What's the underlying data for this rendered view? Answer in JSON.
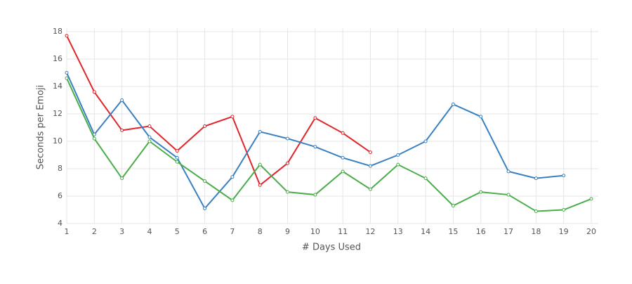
{
  "chart_data": {
    "type": "line",
    "x_label": "# Days Used",
    "y_label": "Seconds per Emoji",
    "x": [
      1,
      2,
      3,
      4,
      5,
      6,
      7,
      8,
      9,
      10,
      11,
      12,
      13,
      14,
      15,
      16,
      17,
      18,
      19,
      20
    ],
    "series": [
      {
        "color": "#e0262b",
        "values": [
          17.7,
          13.6,
          10.8,
          11.1,
          9.3,
          11.1,
          11.8,
          6.8,
          8.4,
          11.7,
          10.6,
          9.2,
          null,
          null,
          null,
          null,
          null,
          null,
          null,
          null
        ]
      },
      {
        "color": "#3a80c0",
        "values": [
          15.0,
          10.5,
          13.0,
          10.3,
          8.8,
          5.1,
          7.4,
          10.7,
          10.2,
          9.6,
          8.8,
          8.2,
          9.0,
          10.0,
          12.7,
          11.8,
          7.8,
          7.3,
          7.5,
          null
        ]
      },
      {
        "color": "#4aad4a",
        "values": [
          14.6,
          10.2,
          7.3,
          10.0,
          8.5,
          7.1,
          5.7,
          8.3,
          6.3,
          6.1,
          7.8,
          6.5,
          8.3,
          7.3,
          5.3,
          6.3,
          6.1,
          4.9,
          5.0,
          5.8
        ]
      }
    ],
    "xlim": [
      1,
      20
    ],
    "xticks": [
      1,
      2,
      3,
      4,
      5,
      6,
      7,
      8,
      9,
      10,
      11,
      12,
      13,
      14,
      15,
      16,
      17,
      18,
      19,
      20
    ],
    "ylim": [
      4,
      18
    ],
    "yticks": [
      4,
      6,
      8,
      10,
      12,
      14,
      16,
      18
    ],
    "grid": true
  }
}
